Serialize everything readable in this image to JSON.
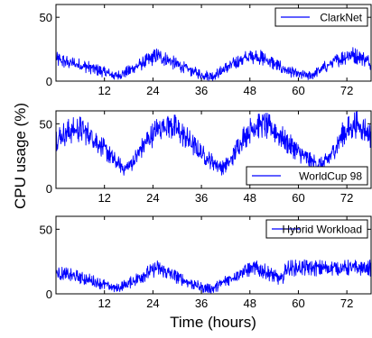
{
  "figure": {
    "ylabel": "CPU usage (%)",
    "xlabel": "Time (hours)"
  },
  "chart_data": [
    {
      "type": "line",
      "title": "",
      "xlabel": "",
      "ylabel": "",
      "xlim": [
        0,
        78
      ],
      "ylim": [
        0,
        60
      ],
      "x_ticks": [
        12,
        24,
        36,
        48,
        60,
        72
      ],
      "y_ticks": [
        0,
        50
      ],
      "grid": false,
      "legend_position": "top-right",
      "series": [
        {
          "name": "ClarkNet",
          "color": "#0000ff",
          "x": [
            0,
            4,
            8,
            12,
            15,
            18,
            22,
            25,
            28,
            32,
            36,
            39,
            42,
            46,
            49,
            52,
            56,
            60,
            63,
            66,
            70,
            73,
            76,
            78
          ],
          "y": [
            17,
            14,
            11,
            7,
            4,
            8,
            15,
            20,
            16,
            10,
            5,
            4,
            10,
            17,
            20,
            17,
            10,
            5,
            4,
            10,
            17,
            21,
            18,
            14
          ]
        }
      ]
    },
    {
      "type": "line",
      "title": "",
      "xlabel": "",
      "ylabel": "",
      "xlim": [
        0,
        78
      ],
      "ylim": [
        0,
        60
      ],
      "x_ticks": [
        12,
        24,
        36,
        48,
        60,
        72
      ],
      "y_ticks": [
        0,
        50
      ],
      "grid": false,
      "legend_position": "lower-right",
      "series": [
        {
          "name": "WorldCup 98",
          "color": "#0000ff",
          "x": [
            0,
            3,
            6,
            9,
            12,
            15,
            17,
            19,
            22,
            25,
            27,
            29,
            32,
            35,
            38,
            41,
            43,
            46,
            49,
            51,
            54,
            57,
            60,
            63,
            66,
            68,
            71,
            74,
            76,
            78
          ],
          "y": [
            38,
            44,
            46,
            40,
            30,
            20,
            15,
            20,
            35,
            45,
            50,
            48,
            40,
            30,
            22,
            16,
            20,
            38,
            48,
            50,
            45,
            36,
            28,
            21,
            18,
            25,
            42,
            50,
            47,
            40
          ]
        }
      ]
    },
    {
      "type": "line",
      "title": "",
      "xlabel": "",
      "ylabel": "",
      "xlim": [
        0,
        78
      ],
      "ylim": [
        0,
        60
      ],
      "x_ticks": [
        12,
        24,
        36,
        48,
        60,
        72
      ],
      "y_ticks": [
        0,
        50
      ],
      "grid": false,
      "legend_position": "top-right",
      "series": [
        {
          "name": "Hybrid Workload",
          "color": "#0000ff",
          "x": [
            0,
            4,
            8,
            12,
            15,
            18,
            22,
            25,
            28,
            32,
            36,
            39,
            42,
            46,
            49,
            52,
            55,
            56,
            57,
            60,
            66,
            72,
            78
          ],
          "y": [
            16,
            14,
            11,
            7,
            4,
            8,
            15,
            20,
            16,
            10,
            5,
            4,
            10,
            17,
            20,
            17,
            12,
            11,
            20,
            20,
            20,
            20,
            20
          ]
        }
      ]
    }
  ]
}
